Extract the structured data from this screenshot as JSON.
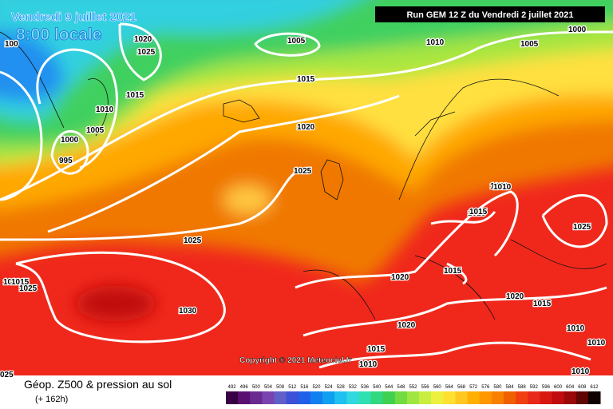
{
  "header": {
    "date": "Vendredi 9 juillet 2021",
    "time": "8:00 locale",
    "run": "Run GEM 12 Z du Vendredi 2 juillet 2021"
  },
  "isobar_labels": [
    "100",
    "1020",
    "1025",
    "1005",
    "1010",
    "1005",
    "1000",
    "1010",
    "1015",
    "1005",
    "1000",
    "995",
    "1015",
    "1020",
    "1025",
    "1025",
    "1020",
    "1015",
    "1025",
    "1020",
    "1015",
    "1020",
    "1015",
    "1030",
    "1020",
    "1010",
    "1015",
    "1010",
    "1010",
    "1010",
    "1020",
    "1015",
    "1025",
    "1010",
    "1015",
    "025"
  ],
  "copyright": "Copyright © 2021 Meteociel.fr",
  "footer": {
    "title": "Géop. Z500 & pression au sol",
    "lead": "(+ 162h)"
  },
  "legend": {
    "labels": [
      "492",
      "496",
      "500",
      "504",
      "508",
      "512",
      "516",
      "520",
      "524",
      "528",
      "532",
      "536",
      "540",
      "544",
      "548",
      "552",
      "556",
      "560",
      "564",
      "568",
      "572",
      "576",
      "580",
      "584",
      "588",
      "592",
      "596",
      "600",
      "604",
      "608",
      "612"
    ],
    "colors": [
      "#3a0046",
      "#5a1070",
      "#6a2a90",
      "#7a44b0",
      "#6060c8",
      "#3c50d8",
      "#2060e8",
      "#1080f0",
      "#10a0f0",
      "#20c0f0",
      "#30d8e0",
      "#30e0b0",
      "#30d880",
      "#40d050",
      "#70dc40",
      "#a0e640",
      "#c8ee40",
      "#eef040",
      "#ffe030",
      "#ffc820",
      "#ffb000",
      "#ff9800",
      "#f88000",
      "#f06000",
      "#f04010",
      "#e82818",
      "#d81810",
      "#c00c0c",
      "#9a0808",
      "#600404",
      "#100000"
    ]
  }
}
